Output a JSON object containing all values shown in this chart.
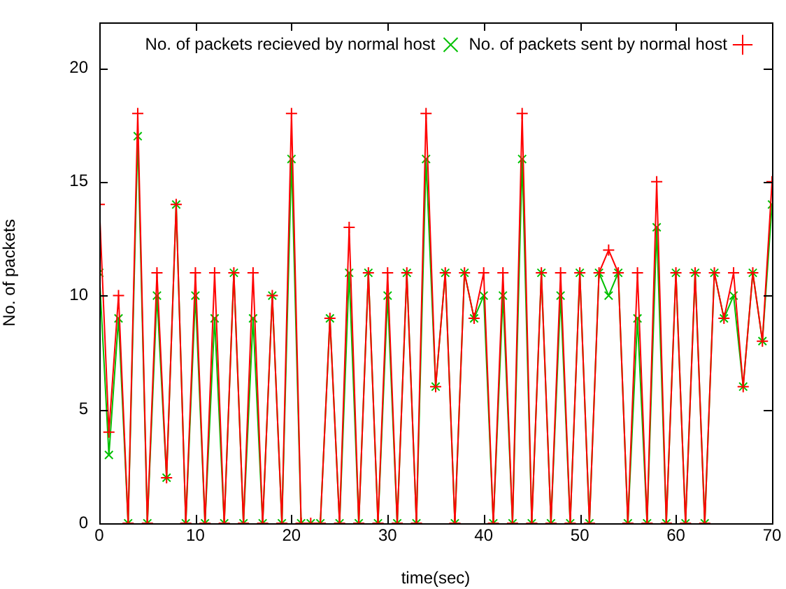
{
  "chart_data": {
    "type": "line",
    "xlabel": "time(sec)",
    "ylabel": "No. of packets",
    "x": [
      0,
      1,
      2,
      3,
      4,
      5,
      6,
      7,
      8,
      9,
      10,
      11,
      12,
      13,
      14,
      15,
      16,
      17,
      18,
      19,
      20,
      21,
      22,
      23,
      24,
      25,
      26,
      27,
      28,
      29,
      30,
      31,
      32,
      33,
      34,
      35,
      36,
      37,
      38,
      39,
      40,
      41,
      42,
      43,
      44,
      45,
      46,
      47,
      48,
      49,
      50,
      51,
      52,
      53,
      54,
      55,
      56,
      57,
      58,
      59,
      60,
      61,
      62,
      63,
      64,
      65,
      66,
      67,
      68,
      69,
      70
    ],
    "series": [
      {
        "name": "No. of packets sent by normal host",
        "color": "#ff0000",
        "marker": "cross",
        "values": [
          14,
          4,
          10,
          0,
          18,
          0,
          11,
          2,
          14,
          0,
          11,
          0,
          11,
          0,
          11,
          0,
          11,
          0,
          10,
          0,
          18,
          0,
          0,
          0,
          9,
          0,
          13,
          0,
          11,
          0,
          11,
          0,
          11,
          0,
          18,
          6,
          11,
          0,
          11,
          9,
          11,
          0,
          11,
          0,
          18,
          0,
          11,
          0,
          11,
          0,
          11,
          0,
          11,
          12,
          11,
          0,
          11,
          0,
          15,
          0,
          11,
          0,
          11,
          0,
          11,
          9,
          11,
          6,
          11,
          8,
          15
        ]
      },
      {
        "name": "No. of packets recieved by normal host",
        "color": "#00c000",
        "marker": "cross",
        "values": [
          11,
          3,
          9,
          0,
          17,
          0,
          10,
          2,
          14,
          0,
          10,
          0,
          9,
          0,
          11,
          0,
          9,
          0,
          10,
          0,
          16,
          0,
          0,
          0,
          9,
          0,
          11,
          0,
          11,
          0,
          10,
          0,
          11,
          0,
          16,
          6,
          11,
          0,
          11,
          9,
          10,
          0,
          10,
          0,
          16,
          0,
          11,
          0,
          10,
          0,
          11,
          0,
          11,
          10,
          11,
          0,
          9,
          0,
          13,
          0,
          11,
          0,
          11,
          0,
          11,
          9,
          10,
          6,
          11,
          8,
          14
        ]
      }
    ],
    "xlim": [
      0,
      70
    ],
    "xticks": [
      0,
      10,
      20,
      30,
      40,
      50,
      60,
      70
    ],
    "ylim": [
      0,
      22
    ],
    "yticks": [
      0,
      5,
      10,
      15,
      20
    ],
    "legend": "top right"
  }
}
